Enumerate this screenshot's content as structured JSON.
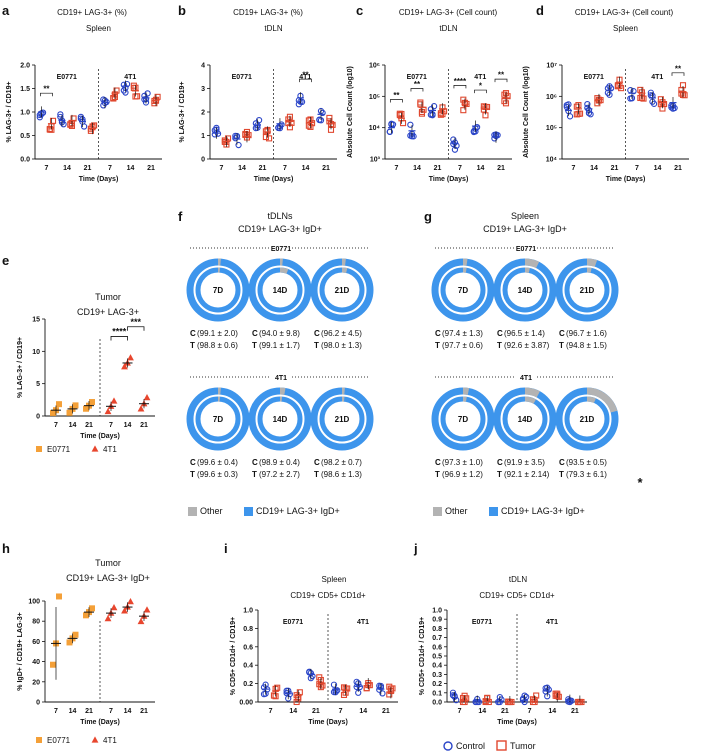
{
  "figure": {
    "colors": {
      "control": "#2a45c8",
      "tumor": "#e0482f",
      "e0771": "#f4a038",
      "t41": "#e8462e",
      "donut_main": "#3d95ec",
      "donut_other": "#b3b3b3"
    },
    "legend_control": "Control",
    "legend_tumor": "Tumor"
  },
  "chart_data": [
    {
      "panel": "a",
      "type": "scatter",
      "title": "CD19+ LAG-3+ (%)",
      "subtitle": "Spleen",
      "ylabel": "% LAG-3+ / CD19+",
      "xlabel": "Time (Days)",
      "ylim": [
        0,
        2.0
      ],
      "yticks": [
        "0.0",
        "0.5",
        "1.0",
        "1.5",
        "2.0"
      ],
      "ylog": false,
      "groups": [
        "E0771",
        "4T1"
      ],
      "days": [
        "7",
        "14",
        "21"
      ],
      "control_means": [
        1.0,
        0.82,
        0.8,
        1.2,
        1.55,
        1.3
      ],
      "tumor_means": [
        0.75,
        0.82,
        0.65,
        1.4,
        1.45,
        1.25
      ],
      "significance": [
        {
          "label": "**",
          "pair": 0
        }
      ]
    },
    {
      "panel": "b",
      "type": "scatter",
      "title": "CD19+ LAG-3+ (%)",
      "subtitle": "tDLN",
      "ylabel": "% LAG-3+ / CD19+",
      "xlabel": "Time (Days)",
      "ylim": [
        0,
        4
      ],
      "yticks": [
        "0",
        "1",
        "2",
        "3",
        "4"
      ],
      "ylog": false,
      "groups": [
        "E0771",
        "4T1"
      ],
      "days": [
        "7",
        "14",
        "21"
      ],
      "control_means": [
        1.1,
        0.85,
        1.45,
        1.5,
        2.6,
        1.9
      ],
      "tumor_means": [
        0.75,
        0.95,
        1.15,
        1.6,
        1.55,
        1.5
      ],
      "significance": [
        {
          "label": "**",
          "pair": 4
        }
      ]
    },
    {
      "panel": "c",
      "type": "scatter",
      "title": "CD19+ LAG-3+ (Cell count)",
      "subtitle": "tDLN",
      "ylabel": "Absolute Cell Count (log10)",
      "xlabel": "Time (Days)",
      "ylim": [
        3,
        6
      ],
      "yticks": [
        "10³",
        "10⁴",
        "10⁵",
        "10⁶"
      ],
      "ylog": true,
      "groups": [
        "E0771",
        "4T1"
      ],
      "days": [
        "7",
        "14",
        "21"
      ],
      "control_means": [
        4.0,
        3.9,
        4.55,
        3.5,
        4.05,
        3.7
      ],
      "tumor_means": [
        4.3,
        4.65,
        4.6,
        4.75,
        4.6,
        4.95
      ],
      "significance": [
        {
          "label": "**",
          "pair": 0
        },
        {
          "label": "**",
          "pair": 1
        },
        {
          "label": "****",
          "pair": 3
        },
        {
          "label": "*",
          "pair": 4
        },
        {
          "label": "**",
          "pair": 5
        }
      ]
    },
    {
      "panel": "d",
      "type": "scatter",
      "title": "CD19+ LAG-3+ (Cell count)",
      "subtitle": "Spleen",
      "ylabel": "Absolute Cell Count (log10)",
      "xlabel": "Time (Days)",
      "ylim": [
        4,
        7
      ],
      "yticks": [
        "10⁴",
        "10⁵",
        "10⁶",
        "10⁷"
      ],
      "ylog": true,
      "groups": [
        "E0771",
        "4T1"
      ],
      "days": [
        "7",
        "14",
        "21"
      ],
      "control_means": [
        5.55,
        5.6,
        6.2,
        6.1,
        5.95,
        5.8
      ],
      "tumor_means": [
        5.6,
        5.9,
        6.45,
        6.1,
        5.8,
        6.15
      ],
      "significance": [
        {
          "label": "**",
          "pair": 5
        }
      ]
    },
    {
      "panel": "e",
      "type": "scatter",
      "title": "Tumor",
      "subtitle": "CD19+ LAG-3+",
      "ylabel": "% LAG-3+ / CD19+",
      "xlabel": "Time (Days)",
      "ylim": [
        0,
        15
      ],
      "yticks": [
        "0",
        "5",
        "10",
        "15"
      ],
      "ylog": false,
      "days": [
        "7",
        "14",
        "21",
        "7",
        "14",
        "21"
      ],
      "series": [
        {
          "name": "E0771",
          "means": [
            0.9,
            1.1,
            1.6
          ]
        },
        {
          "name": "4T1",
          "means": [
            1.5,
            8.2,
            1.9
          ]
        }
      ],
      "significance": [
        {
          "label": "****",
          "from": 3,
          "to": 4
        },
        {
          "label": "***",
          "from": 4,
          "to": 5
        }
      ]
    },
    {
      "panel": "f",
      "type": "pie",
      "title": "tDLNs",
      "subtitle": "CD19+ LAG-3+ IgD+",
      "legend": [
        "Other",
        "CD19+ LAG-3+ IgD+"
      ],
      "rows": [
        {
          "group": "E0771",
          "donuts": [
            {
              "day": "7D",
              "c": "(99.1 ± 2.0)",
              "t": "(98.8 ± 0.6)",
              "c_val": 99.1,
              "t_val": 98.8
            },
            {
              "day": "14D",
              "c": "(94.0 ± 9.8)",
              "t": "(99.1 ± 1.7)",
              "c_val": 94.0,
              "t_val": 99.1
            },
            {
              "day": "21D",
              "c": "(96.2 ± 4.5)",
              "t": "(98.0 ± 1.3)",
              "c_val": 96.2,
              "t_val": 98.0
            }
          ]
        },
        {
          "group": "4T1",
          "donuts": [
            {
              "day": "7D",
              "c": "(99.6 ± 0.4)",
              "t": "(99.6 ± 0.3)",
              "c_val": 99.6,
              "t_val": 99.6
            },
            {
              "day": "14D",
              "c": "(98.9 ± 0.4)",
              "t": "(97.2 ± 2.7)",
              "c_val": 98.9,
              "t_val": 97.2
            },
            {
              "day": "21D",
              "c": "(98.2 ± 0.7)",
              "t": "(98.6 ± 1.3)",
              "c_val": 98.2,
              "t_val": 98.6
            }
          ]
        }
      ]
    },
    {
      "panel": "g",
      "type": "pie",
      "title": "Spleen",
      "subtitle": "CD19+ LAG-3+ IgD+",
      "legend": [
        "Other",
        "CD19+ LAG-3+ IgD+"
      ],
      "rows": [
        {
          "group": "E0771",
          "donuts": [
            {
              "day": "7D",
              "c": "(97.4 ± 1.3)",
              "t": "(97.7 ± 0.6)",
              "c_val": 97.4,
              "t_val": 97.7
            },
            {
              "day": "14D",
              "c": "(96.5 ± 1.4)",
              "t": "(92.6 ± 3.87)",
              "c_val": 96.5,
              "t_val": 92.6
            },
            {
              "day": "21D",
              "c": "(96.7 ± 1.6)",
              "t": "(94.8 ± 1.5)",
              "c_val": 96.7,
              "t_val": 94.8
            }
          ]
        },
        {
          "group": "4T1",
          "donuts": [
            {
              "day": "7D",
              "c": "(97.3 ± 1.0)",
              "t": "(96.9 ± 1.2)",
              "c_val": 97.3,
              "t_val": 96.9
            },
            {
              "day": "14D",
              "c": "(91.9 ± 3.5)",
              "t": "(92.1 ± 2.14)",
              "c_val": 91.9,
              "t_val": 92.1
            },
            {
              "day": "21D",
              "c": "(93.5 ± 0.5)",
              "t": "(79.3 ± 6.1)",
              "c_val": 93.5,
              "t_val": 79.3
            }
          ]
        }
      ],
      "star": "*"
    },
    {
      "panel": "h",
      "type": "scatter",
      "title": "Tumor",
      "subtitle": "CD19+ LAG-3+ IgD+",
      "ylabel": "% IgD+ / CD19+ LAG-3+",
      "xlabel": "Time (Days)",
      "ylim": [
        0,
        100
      ],
      "yticks": [
        "0",
        "20",
        "40",
        "60",
        "80",
        "100"
      ],
      "ylog": false,
      "days": [
        "7",
        "14",
        "21",
        "7",
        "14",
        "21"
      ],
      "series": [
        {
          "name": "E0771",
          "means": [
            58,
            63,
            89
          ]
        },
        {
          "name": "4T1",
          "means": [
            88,
            94,
            85
          ]
        }
      ]
    },
    {
      "panel": "i",
      "type": "scatter",
      "title": "Spleen",
      "subtitle": "CD19+ CD5+ CD1d+",
      "ylabel": "% CD5+ CD1d+ / CD19+",
      "xlabel": "Time (Days)",
      "ylim": [
        0,
        1.0
      ],
      "yticks": [
        "0.00",
        "0.2",
        "0.4",
        "0.6",
        "0.8",
        "1.0"
      ],
      "ylog": false,
      "groups": [
        "E0771",
        "4T1"
      ],
      "days": [
        "7",
        "14",
        "21"
      ],
      "control_means": [
        0.14,
        0.09,
        0.3,
        0.14,
        0.17,
        0.14
      ],
      "tumor_means": [
        0.12,
        0.07,
        0.2,
        0.13,
        0.2,
        0.1
      ]
    },
    {
      "panel": "j",
      "type": "scatter",
      "title": "tDLN",
      "subtitle": "CD19+ CD5+ CD1d+",
      "ylabel": "% CD5+ CD1d+ / CD19+",
      "xlabel": "Time (Days)",
      "ylim": [
        0,
        1.0
      ],
      "yticks": [
        "0.0",
        "0.1",
        "0.2",
        "0.3",
        "0.4",
        "0.5",
        "0.6",
        "0.7",
        "0.8",
        "0.9",
        "1.0"
      ],
      "ylog": false,
      "groups": [
        "E0771",
        "4T1"
      ],
      "days": [
        "7",
        "14",
        "21"
      ],
      "control_means": [
        0.05,
        0.01,
        0.005,
        0.02,
        0.12,
        0.02
      ],
      "tumor_means": [
        0.01,
        0.005,
        0.005,
        0.01,
        0.04,
        0.01
      ]
    }
  ]
}
